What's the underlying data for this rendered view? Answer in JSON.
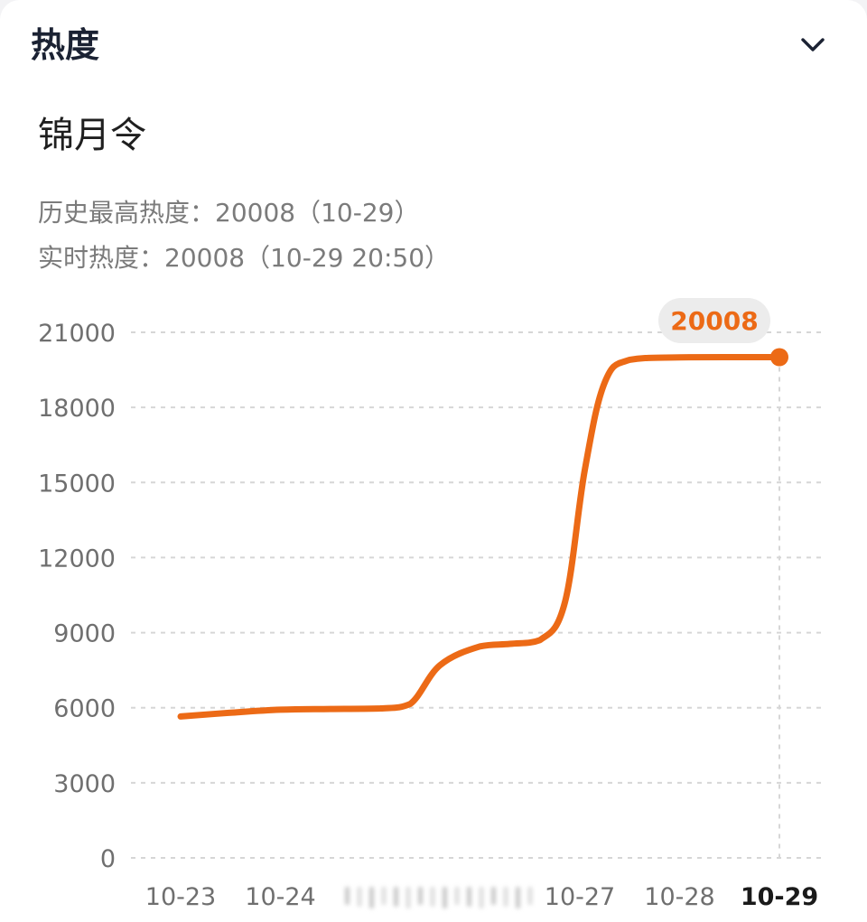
{
  "header": {
    "title": "热度",
    "collapse_icon": "chevron-down-icon"
  },
  "topic": {
    "name": "锦月令"
  },
  "stats": {
    "peak_label": "历史最高热度：",
    "peak_value": "20008",
    "peak_date": "（10-29）",
    "realtime_label": "实时热度：",
    "realtime_value": "20008",
    "realtime_time": "（10-29 20:50）"
  },
  "colors": {
    "accent": "#ec6a16",
    "grid": "#d6d6d6",
    "axis_text": "#6f6f6f",
    "axis_text_active": "#1a1a1a",
    "tooltip_bg": "#ececec"
  },
  "chart_data": {
    "type": "line",
    "x": [
      "10-23",
      "10-24",
      "10-25",
      "10-26",
      "10-27",
      "10-28",
      "10-29"
    ],
    "x_labels": [
      "10-23",
      "10-24",
      "",
      "",
      "10-27",
      "10-28",
      "10-29"
    ],
    "active_x": "10-29",
    "y_ticks": [
      0,
      3000,
      6000,
      9000,
      12000,
      15000,
      18000,
      21000
    ],
    "ylim": [
      0,
      21000
    ],
    "grid": true,
    "points": [
      {
        "x": 0,
        "y": 5650
      },
      {
        "x": 0.5,
        "y": 5800
      },
      {
        "x": 1.0,
        "y": 5920
      },
      {
        "x": 1.5,
        "y": 5950
      },
      {
        "x": 2.0,
        "y": 5970
      },
      {
        "x": 2.3,
        "y": 6150
      },
      {
        "x": 2.6,
        "y": 7700
      },
      {
        "x": 3.0,
        "y": 8450
      },
      {
        "x": 3.3,
        "y": 8550
      },
      {
        "x": 3.6,
        "y": 8700
      },
      {
        "x": 3.85,
        "y": 10200
      },
      {
        "x": 4.05,
        "y": 15500
      },
      {
        "x": 4.25,
        "y": 19000
      },
      {
        "x": 4.5,
        "y": 19900
      },
      {
        "x": 5.0,
        "y": 20000
      },
      {
        "x": 6.0,
        "y": 20008
      }
    ],
    "highlight": {
      "x": 6.0,
      "y": 20008,
      "label": "20008"
    }
  }
}
